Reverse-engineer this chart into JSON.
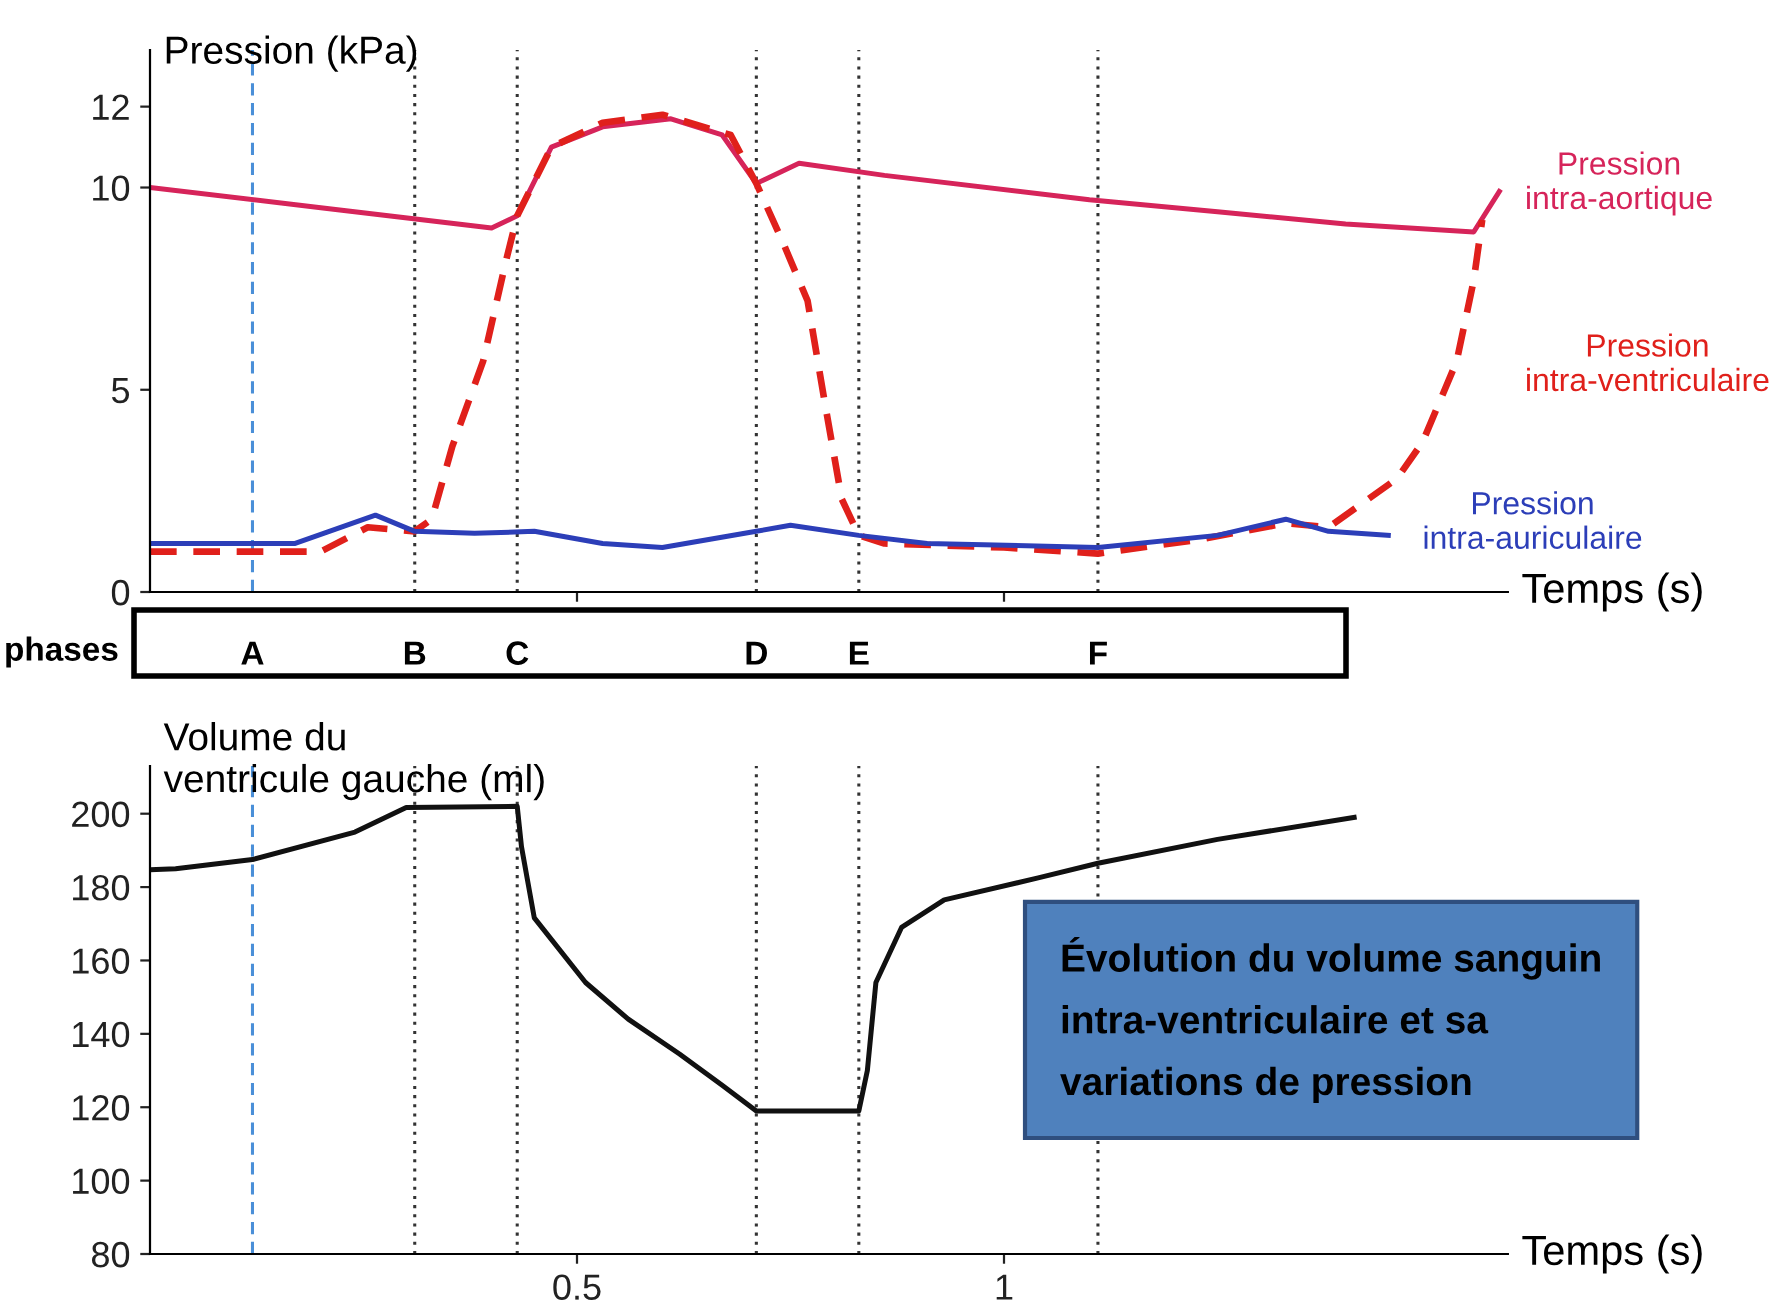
{
  "chart_data": [
    {
      "type": "line",
      "ylabel": "Pression (kPa)",
      "xlabel": "Temps (s)",
      "xlim": [
        0,
        1.59
      ],
      "ylim": [
        0,
        13.4
      ],
      "xticks": [
        0.5,
        1
      ],
      "yticks": [
        0,
        5,
        10,
        12
      ],
      "tick_labels": "y",
      "annotations": [
        "phases"
      ],
      "ref_lines": [
        {
          "axis": "x",
          "value": 0.12,
          "label": "A",
          "color": "#4a8fd8",
          "line_style": "dashed"
        },
        {
          "axis": "x",
          "value": 0.31,
          "label": "B",
          "color": "#333333",
          "line_style": "dotted"
        },
        {
          "axis": "x",
          "value": 0.43,
          "label": "C",
          "color": "#333333",
          "line_style": "dotted"
        },
        {
          "axis": "x",
          "value": 0.71,
          "label": "D",
          "color": "#333333",
          "line_style": "dotted"
        },
        {
          "axis": "x",
          "value": 0.83,
          "label": "E",
          "color": "#333333",
          "line_style": "dotted"
        },
        {
          "axis": "x",
          "value": 1.11,
          "label": "F",
          "color": "#333333",
          "line_style": "dotted"
        }
      ],
      "series": [
        {
          "name": "Pression\nintra-aortique",
          "color": "#d6245a",
          "line_style": "solid",
          "x": [
            0,
            0.2,
            0.4,
            0.43,
            0.47,
            0.53,
            0.61,
            0.67,
            0.71,
            0.72,
            0.76,
            0.86,
            1.1,
            1.25,
            1.4,
            1.55,
            1.58
          ],
          "values": [
            10.0,
            9.5,
            9.0,
            9.3,
            11.0,
            11.5,
            11.7,
            11.3,
            10.1,
            10.2,
            10.6,
            10.3,
            9.7,
            9.4,
            9.1,
            8.9,
            9.9
          ]
        },
        {
          "name": "Pression\nintra-ventriculaire",
          "color": "#e0201b",
          "line_style": "dashed",
          "x": [
            0,
            0.1,
            0.2,
            0.255,
            0.31,
            0.33,
            0.354,
            0.39,
            0.417,
            0.43,
            0.47,
            0.53,
            0.6,
            0.68,
            0.71,
            0.74,
            0.77,
            0.79,
            0.81,
            0.83,
            0.86,
            1.0,
            1.11,
            1.23,
            1.33,
            1.38,
            1.46,
            1.49,
            1.53,
            1.55,
            1.56
          ],
          "values": [
            1.0,
            1.0,
            1.0,
            1.6,
            1.5,
            1.8,
            3.6,
            5.7,
            8.2,
            9.3,
            11.0,
            11.6,
            11.8,
            11.3,
            10.1,
            8.7,
            7.2,
            4.7,
            2.3,
            1.4,
            1.2,
            1.1,
            0.95,
            1.3,
            1.7,
            1.6,
            2.8,
            3.7,
            5.7,
            7.7,
            9.2
          ]
        },
        {
          "name": "Pression\nintra-auriculaire",
          "color": "#2c3eb8",
          "line_style": "solid",
          "x": [
            0,
            0.17,
            0.264,
            0.31,
            0.38,
            0.45,
            0.53,
            0.6,
            0.71,
            0.75,
            0.83,
            0.91,
            1.11,
            1.25,
            1.33,
            1.38,
            1.45
          ],
          "values": [
            1.2,
            1.2,
            1.9,
            1.5,
            1.45,
            1.5,
            1.2,
            1.1,
            1.5,
            1.65,
            1.4,
            1.2,
            1.1,
            1.4,
            1.8,
            1.5,
            1.4
          ]
        }
      ]
    },
    {
      "type": "line",
      "ylabel": "Volume du\nventricule gauche (ml)",
      "xlabel": "Temps (s)",
      "xlim": [
        0,
        1.59
      ],
      "ylim": [
        80,
        213
      ],
      "xticks": [
        0.5,
        1
      ],
      "yticks": [
        80,
        100,
        120,
        140,
        160,
        180,
        200
      ],
      "annotations": [
        "Évolution du volume sanguin\nintra-ventriculaire et sa\nvariations de pression"
      ],
      "ref_lines": [
        {
          "axis": "x",
          "value": 0.12,
          "color": "#4a8fd8",
          "line_style": "dashed"
        },
        {
          "axis": "x",
          "value": 0.31,
          "color": "#333333",
          "line_style": "dotted"
        },
        {
          "axis": "x",
          "value": 0.43,
          "color": "#333333",
          "line_style": "dotted"
        },
        {
          "axis": "x",
          "value": 0.71,
          "color": "#333333",
          "line_style": "dotted"
        },
        {
          "axis": "x",
          "value": 0.83,
          "color": "#333333",
          "line_style": "dotted"
        },
        {
          "axis": "x",
          "value": 1.11,
          "color": "#333333",
          "line_style": "dotted"
        }
      ],
      "series": [
        {
          "color": "#111111",
          "line_style": "solid",
          "x": [
            0,
            0.03,
            0.12,
            0.24,
            0.3,
            0.43,
            0.435,
            0.45,
            0.51,
            0.56,
            0.62,
            0.67,
            0.71,
            0.83,
            0.84,
            0.85,
            0.88,
            0.93,
            1.04,
            1.11,
            1.25,
            1.41
          ],
          "values": [
            184.7,
            185,
            187.5,
            195,
            201.7,
            202,
            191,
            171.6,
            154,
            144,
            134.5,
            126,
            119,
            119,
            130,
            154,
            169,
            176.5,
            182.5,
            186.5,
            193,
            199
          ]
        }
      ]
    }
  ]
}
